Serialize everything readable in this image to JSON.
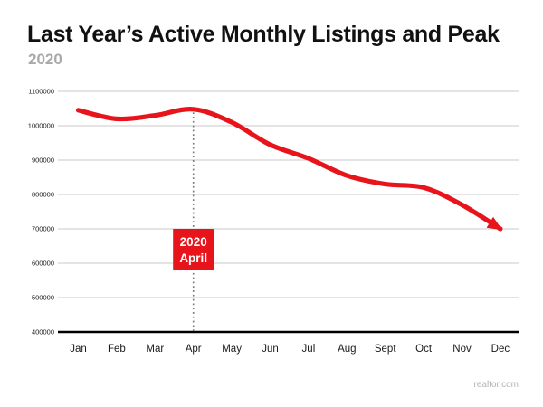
{
  "header": {
    "title": "Last Year’s Active Monthly Listings and Peak",
    "subtitle": "2020"
  },
  "watermark": "realtor.com",
  "colors": {
    "line_red": "#e8141b",
    "annotation_bg": "#e8141b",
    "annotation_text": "#ffffff",
    "grid": "#c9c9c9",
    "axis": "#000000",
    "tick_text": "#1a1a1a",
    "dotted_line": "#7a7a7a",
    "subtitle_gray": "#a9a9a9",
    "watermark_gray": "#b3b3b3"
  },
  "chart_data": {
    "type": "line",
    "title": "Last Year’s Active Monthly Listings and Peak",
    "subtitle": "2020",
    "categories": [
      "Jan",
      "Feb",
      "Mar",
      "Apr",
      "May",
      "Jun",
      "Jul",
      "Aug",
      "Sept",
      "Oct",
      "Nov",
      "Dec"
    ],
    "values": [
      1045000,
      1020000,
      1030000,
      1048000,
      1010000,
      945000,
      905000,
      855000,
      830000,
      820000,
      770000,
      700000
    ],
    "ylim": [
      400000,
      1100000
    ],
    "ytick_step": 100000,
    "ytick_labels": [
      "400000",
      "500000",
      "600000",
      "700000",
      "800000",
      "900000",
      "1000000",
      "1100000"
    ],
    "xlabel": "",
    "ylabel": "",
    "grid": "horizontal",
    "legend": "none",
    "line_style": "smooth, thick, red, arrowhead at end",
    "annotation": {
      "category": "Apr",
      "category_index": 3,
      "label_lines": [
        "2020",
        "April"
      ],
      "marker": "vertical dotted line from curve peak to x-axis"
    }
  }
}
